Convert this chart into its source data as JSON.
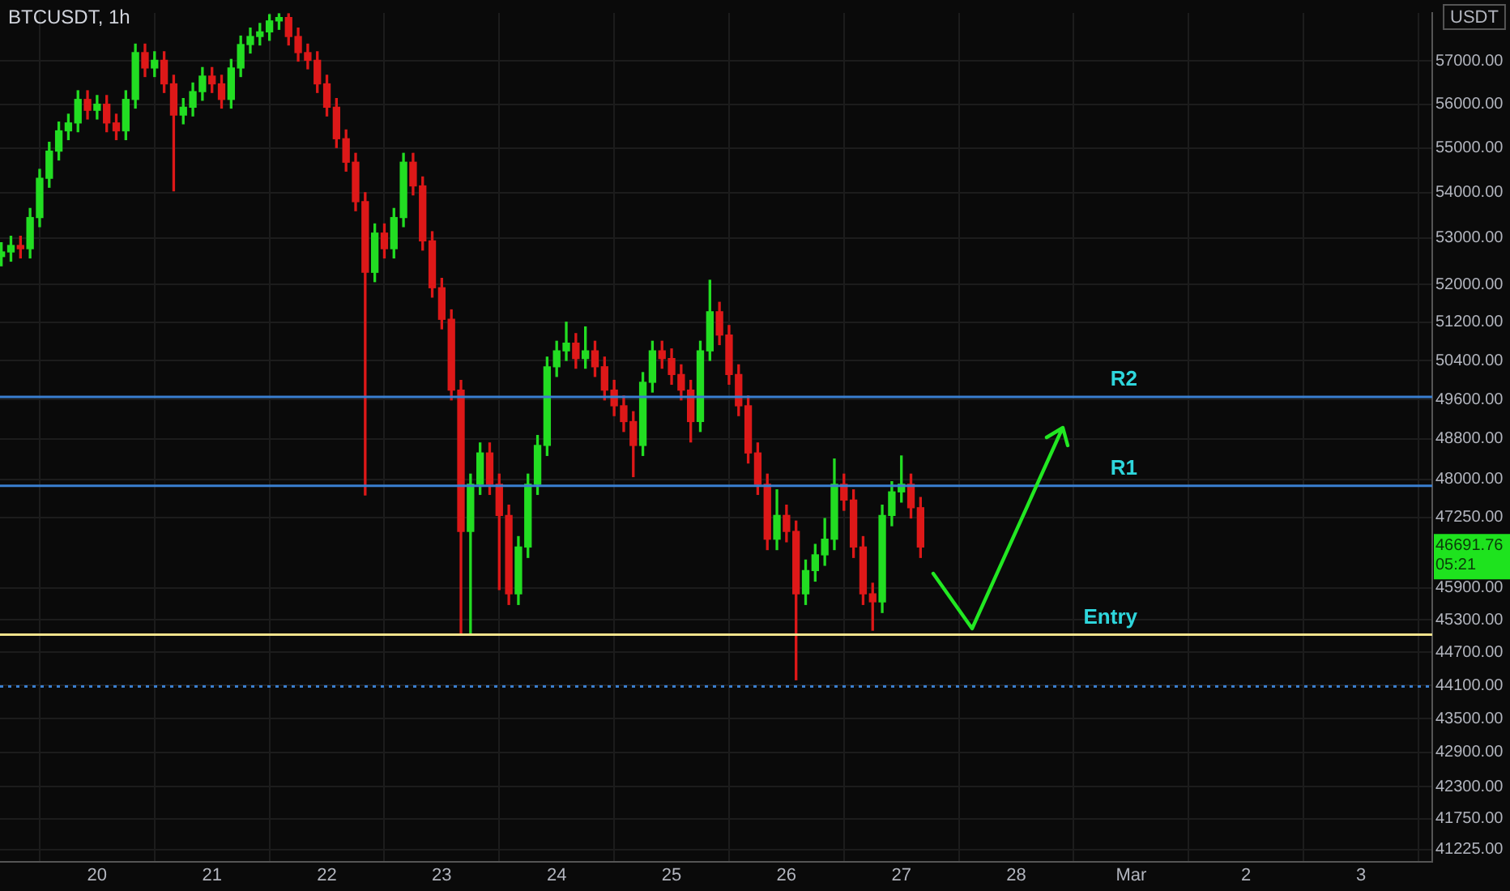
{
  "chart_data": {
    "type": "candlestick",
    "title": "BTCUSDT, 1h",
    "ylabel": "USDT",
    "log": true,
    "grid": true,
    "legend": false,
    "xlim": [
      "--02-19T03:43",
      "--03-03T14:53"
    ],
    "xticks": [
      {
        "value": "--02-20",
        "label": "20"
      },
      {
        "value": "--02-21",
        "label": "21"
      },
      {
        "value": "--02-22",
        "label": "22"
      },
      {
        "value": "--02-23",
        "label": "23"
      },
      {
        "value": "--02-24",
        "label": "24"
      },
      {
        "value": "--02-25",
        "label": "25"
      },
      {
        "value": "--02-26",
        "label": "26"
      },
      {
        "value": "--02-27",
        "label": "27"
      },
      {
        "value": "--02-28",
        "label": "28"
      },
      {
        "value": "--03-01",
        "label": "Mar"
      },
      {
        "value": "--03-02",
        "label": "2"
      },
      {
        "value": "--03-03",
        "label": "3"
      }
    ],
    "ylim": [
      41013,
      58140
    ],
    "yticks": [
      {
        "value": 57000,
        "label": "57000.00"
      },
      {
        "value": 56000,
        "label": "56000.00"
      },
      {
        "value": 55000,
        "label": "55000.00"
      },
      {
        "value": 54000,
        "label": "54000.00"
      },
      {
        "value": 53000,
        "label": "53000.00"
      },
      {
        "value": 52000,
        "label": "52000.00"
      },
      {
        "value": 51200,
        "label": "51200.00"
      },
      {
        "value": 50400,
        "label": "50400.00"
      },
      {
        "value": 49600,
        "label": "49600.00"
      },
      {
        "value": 48800,
        "label": "48800.00"
      },
      {
        "value": 48000,
        "label": "48000.00"
      },
      {
        "value": 47250,
        "label": "47250.00"
      },
      {
        "value": 45900,
        "label": "45900.00"
      },
      {
        "value": 45300,
        "label": "45300.00"
      },
      {
        "value": 44700,
        "label": "44700.00"
      },
      {
        "value": 44100,
        "label": "44100.00"
      },
      {
        "value": 43500,
        "label": "43500.00"
      },
      {
        "value": 42900,
        "label": "42900.00"
      },
      {
        "value": 42300,
        "label": "42300.00"
      },
      {
        "value": 41750,
        "label": "41750.00"
      },
      {
        "value": 41225,
        "label": "41225.00"
      }
    ],
    "ref_lines": [
      {
        "axis": "y",
        "value": 49650,
        "label": "R2",
        "color": "#3a7fd0"
      },
      {
        "axis": "y",
        "value": 47870,
        "label": "R1",
        "color": "#3a7fd0"
      },
      {
        "axis": "y",
        "value": 45030,
        "label": "Entry",
        "color": "#f2e38c"
      },
      {
        "axis": "y",
        "value": 44080,
        "label": null,
        "color": "#3a7fd0",
        "line_style": "dotted"
      }
    ],
    "annotations": [
      "46691.76",
      "05:21"
    ],
    "x": [
      "--02-19T04:00",
      "--02-19T06:00",
      "--02-19T08:00",
      "--02-19T10:00",
      "--02-19T12:00",
      "--02-19T14:00",
      "--02-19T16:00",
      "--02-19T18:00",
      "--02-19T20:00",
      "--02-19T22:00",
      "--02-20T00:00",
      "--02-20T02:00",
      "--02-20T04:00",
      "--02-20T06:00",
      "--02-20T08:00",
      "--02-20T10:00",
      "--02-20T12:00",
      "--02-20T14:00",
      "--02-20T16:00",
      "--02-20T18:00",
      "--02-20T20:00",
      "--02-20T22:00",
      "--02-21T00:00",
      "--02-21T02:00",
      "--02-21T04:00",
      "--02-21T06:00",
      "--02-21T08:00",
      "--02-21T10:00",
      "--02-21T12:00",
      "--02-21T14:00",
      "--02-21T16:00",
      "--02-21T18:00",
      "--02-21T20:00",
      "--02-21T22:00",
      "--02-22T00:00",
      "--02-22T02:00",
      "--02-22T04:00",
      "--02-22T06:00",
      "--02-22T08:00",
      "--02-22T10:00",
      "--02-22T12:00",
      "--02-22T14:00",
      "--02-22T16:00",
      "--02-22T18:00",
      "--02-22T20:00",
      "--02-22T22:00",
      "--02-23T00:00",
      "--02-23T02:00",
      "--02-23T04:00",
      "--02-23T06:00",
      "--02-23T08:00",
      "--02-23T10:00",
      "--02-23T12:00",
      "--02-23T14:00",
      "--02-23T16:00",
      "--02-23T18:00",
      "--02-23T20:00",
      "--02-23T22:00",
      "--02-24T00:00",
      "--02-24T02:00",
      "--02-24T04:00",
      "--02-24T06:00",
      "--02-24T08:00",
      "--02-24T10:00",
      "--02-24T12:00",
      "--02-24T14:00",
      "--02-24T16:00",
      "--02-24T18:00",
      "--02-24T20:00",
      "--02-24T22:00",
      "--02-25T00:00",
      "--02-25T02:00",
      "--02-25T04:00",
      "--02-25T06:00",
      "--02-25T08:00",
      "--02-25T10:00",
      "--02-25T12:00",
      "--02-25T14:00",
      "--02-25T16:00",
      "--02-25T18:00",
      "--02-25T20:00",
      "--02-25T22:00",
      "--02-26T00:00",
      "--02-26T02:00",
      "--02-26T04:00",
      "--02-26T06:00",
      "--02-26T08:00",
      "--02-26T10:00",
      "--02-26T12:00",
      "--02-26T14:00",
      "--02-26T16:00",
      "--02-26T18:00",
      "--02-26T20:00",
      "--02-26T22:00",
      "--02-27T00:00",
      "--02-27T02:00",
      "--02-27T04:00"
    ],
    "ohlc": [
      [
        52600,
        52900,
        52400,
        52700
      ],
      [
        52700,
        53040,
        52500,
        52840
      ],
      [
        52840,
        53040,
        52570,
        52770
      ],
      [
        52770,
        53650,
        52570,
        53450
      ],
      [
        53450,
        54520,
        53250,
        54320
      ],
      [
        54320,
        55130,
        54120,
        54930
      ],
      [
        54930,
        55590,
        54730,
        55390
      ],
      [
        55390,
        55770,
        55190,
        55570
      ],
      [
        55570,
        56310,
        55370,
        56110
      ],
      [
        56110,
        56310,
        55660,
        55860
      ],
      [
        55860,
        56200,
        55660,
        56000
      ],
      [
        56000,
        56200,
        55370,
        55570
      ],
      [
        55570,
        55770,
        55190,
        55390
      ],
      [
        55390,
        56310,
        55190,
        56110
      ],
      [
        56110,
        57400,
        55910,
        57200
      ],
      [
        57200,
        57400,
        56640,
        56840
      ],
      [
        56840,
        57220,
        56640,
        57020
      ],
      [
        57020,
        57220,
        56270,
        56470
      ],
      [
        56470,
        56670,
        54040,
        55750
      ],
      [
        55750,
        56130,
        55550,
        55930
      ],
      [
        55930,
        56490,
        55730,
        56290
      ],
      [
        56290,
        56850,
        56090,
        56650
      ],
      [
        56650,
        56850,
        56270,
        56470
      ],
      [
        56470,
        56670,
        55910,
        56110
      ],
      [
        56110,
        57040,
        55910,
        56840
      ],
      [
        56840,
        57590,
        56640,
        57390
      ],
      [
        57390,
        57780,
        57190,
        57580
      ],
      [
        57580,
        57890,
        57380,
        57690
      ],
      [
        57690,
        58100,
        57490,
        57950
      ],
      [
        57950,
        58120,
        57750,
        58030
      ],
      [
        58030,
        58120,
        57380,
        57580
      ],
      [
        57580,
        57780,
        57000,
        57200
      ],
      [
        57200,
        57400,
        56820,
        57020
      ],
      [
        57020,
        57220,
        56270,
        56470
      ],
      [
        56470,
        56670,
        55730,
        55930
      ],
      [
        55930,
        56130,
        55010,
        55210
      ],
      [
        55210,
        55410,
        54480,
        54680
      ],
      [
        54680,
        54880,
        53600,
        53800
      ],
      [
        53800,
        54000,
        47690,
        52260
      ],
      [
        52260,
        53310,
        52060,
        53110
      ],
      [
        53110,
        53310,
        52570,
        52770
      ],
      [
        52770,
        53650,
        52570,
        53450
      ],
      [
        53450,
        54880,
        53250,
        54680
      ],
      [
        54680,
        54880,
        53950,
        54150
      ],
      [
        54150,
        54350,
        52740,
        52940
      ],
      [
        52940,
        53140,
        51730,
        51930
      ],
      [
        51930,
        52130,
        51060,
        51260
      ],
      [
        51260,
        51460,
        49590,
        49790
      ],
      [
        49790,
        49990,
        45050,
        46980
      ],
      [
        46980,
        48100,
        45050,
        47900
      ],
      [
        47900,
        48720,
        47700,
        48520
      ],
      [
        48520,
        48720,
        47700,
        47900
      ],
      [
        47900,
        48100,
        45870,
        47290
      ],
      [
        47290,
        47490,
        45590,
        45790
      ],
      [
        45790,
        46880,
        45590,
        46680
      ],
      [
        46680,
        48100,
        46480,
        47900
      ],
      [
        47900,
        48870,
        47700,
        48670
      ],
      [
        48670,
        50470,
        48470,
        50270
      ],
      [
        50270,
        50800,
        50070,
        50600
      ],
      [
        50600,
        51200,
        50400,
        50760
      ],
      [
        50760,
        50960,
        50240,
        50440
      ],
      [
        50440,
        51100,
        50240,
        50600
      ],
      [
        50600,
        50800,
        50070,
        50270
      ],
      [
        50270,
        50470,
        49590,
        49790
      ],
      [
        49790,
        49990,
        49270,
        49470
      ],
      [
        49470,
        49670,
        48950,
        49150
      ],
      [
        49150,
        49350,
        48050,
        48670
      ],
      [
        48670,
        50150,
        48470,
        49950
      ],
      [
        49950,
        50800,
        49750,
        50600
      ],
      [
        50600,
        50800,
        50240,
        50440
      ],
      [
        50440,
        50640,
        49910,
        50110
      ],
      [
        50110,
        50310,
        49590,
        49790
      ],
      [
        49790,
        49990,
        48740,
        49150
      ],
      [
        49150,
        50800,
        48950,
        50600
      ],
      [
        50600,
        52090,
        50400,
        51420
      ],
      [
        51420,
        51620,
        50730,
        50930
      ],
      [
        50930,
        51130,
        49910,
        50110
      ],
      [
        50110,
        50310,
        49270,
        49470
      ],
      [
        49470,
        49670,
        48320,
        48520
      ],
      [
        48520,
        48720,
        47700,
        47900
      ],
      [
        47900,
        48100,
        46630,
        46830
      ],
      [
        46830,
        47790,
        46630,
        47290
      ],
      [
        47290,
        47490,
        46780,
        46980
      ],
      [
        46980,
        47180,
        44200,
        45790
      ],
      [
        45790,
        46430,
        45590,
        46230
      ],
      [
        46230,
        46730,
        46030,
        46530
      ],
      [
        46530,
        47230,
        46330,
        46830
      ],
      [
        46830,
        48400,
        46630,
        47900
      ],
      [
        47900,
        48100,
        47390,
        47590
      ],
      [
        47590,
        47790,
        46480,
        46680
      ],
      [
        46680,
        46880,
        45590,
        45790
      ],
      [
        45790,
        45990,
        45110,
        45640
      ],
      [
        45640,
        47490,
        45440,
        47290
      ],
      [
        47290,
        47950,
        47090,
        47750
      ],
      [
        47750,
        48460,
        47550,
        47900
      ],
      [
        47900,
        48100,
        47240,
        47440
      ],
      [
        47440,
        47640,
        46480,
        46680
      ]
    ],
    "colors": [
      "#22dd22",
      "#22dd22",
      "#dd1818",
      "#22dd22",
      "#22dd22",
      "#22dd22",
      "#22dd22",
      "#22dd22",
      "#22dd22",
      "#dd1818",
      "#22dd22",
      "#dd1818",
      "#dd1818",
      "#22dd22",
      "#22dd22",
      "#dd1818",
      "#22dd22",
      "#dd1818",
      "#dd1818",
      "#22dd22",
      "#22dd22",
      "#22dd22",
      "#dd1818",
      "#dd1818",
      "#22dd22",
      "#22dd22",
      "#22dd22",
      "#22dd22",
      "#22dd22",
      "#22dd22",
      "#dd1818",
      "#dd1818",
      "#dd1818",
      "#dd1818",
      "#dd1818",
      "#dd1818",
      "#dd1818",
      "#dd1818",
      "#dd1818",
      "#22dd22",
      "#dd1818",
      "#22dd22",
      "#22dd22",
      "#dd1818",
      "#dd1818",
      "#dd1818",
      "#dd1818",
      "#dd1818",
      "#dd1818",
      "#22dd22",
      "#22dd22",
      "#dd1818",
      "#dd1818",
      "#dd1818",
      "#22dd22",
      "#22dd22",
      "#22dd22",
      "#22dd22",
      "#22dd22",
      "#22dd22",
      "#dd1818",
      "#22dd22",
      "#dd1818",
      "#dd1818",
      "#dd1818",
      "#dd1818",
      "#dd1818",
      "#22dd22",
      "#22dd22",
      "#dd1818",
      "#dd1818",
      "#dd1818",
      "#dd1818",
      "#22dd22",
      "#22dd22",
      "#dd1818",
      "#dd1818",
      "#dd1818",
      "#dd1818",
      "#dd1818",
      "#dd1818",
      "#22dd22",
      "#dd1818",
      "#dd1818",
      "#22dd22",
      "#22dd22",
      "#22dd22",
      "#22dd22",
      "#dd1818",
      "#dd1818",
      "#dd1818",
      "#dd1818",
      "#22dd22",
      "#22dd22",
      "#22dd22",
      "#dd1818",
      "#dd1818"
    ]
  }
}
